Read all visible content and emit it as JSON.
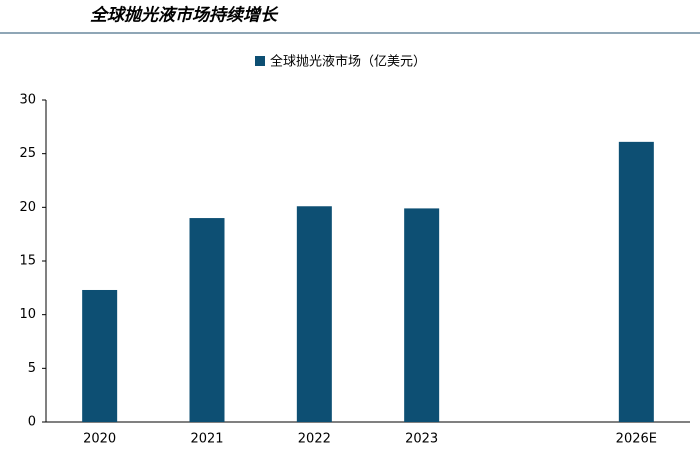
{
  "chart_data": {
    "type": "bar",
    "title": "全球抛光液市场持续增长",
    "categories": [
      "2020",
      "2021",
      "2022",
      "2023",
      null,
      "2026E"
    ],
    "series": [
      {
        "name": "全球抛光液市场（亿美元）",
        "color": "#0d4f73",
        "values": [
          12.3,
          19.0,
          20.1,
          19.9,
          null,
          26.1
        ]
      }
    ],
    "ylim": [
      0,
      30
    ],
    "yticks": [
      0,
      5,
      10,
      15,
      20,
      25,
      30
    ],
    "grid": false
  }
}
